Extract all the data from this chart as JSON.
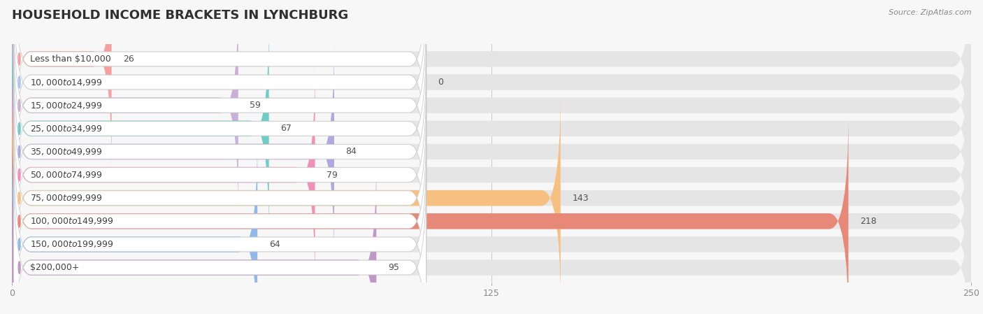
{
  "title": "HOUSEHOLD INCOME BRACKETS IN LYNCHBURG",
  "source": "Source: ZipAtlas.com",
  "categories": [
    "Less than $10,000",
    "$10,000 to $14,999",
    "$15,000 to $24,999",
    "$25,000 to $34,999",
    "$35,000 to $49,999",
    "$50,000 to $74,999",
    "$75,000 to $99,999",
    "$100,000 to $149,999",
    "$150,000 to $199,999",
    "$200,000+"
  ],
  "values": [
    26,
    0,
    59,
    67,
    84,
    79,
    143,
    218,
    64,
    95
  ],
  "bar_colors": [
    "#F4A0A0",
    "#A8C8F0",
    "#C8B0D8",
    "#6ECEC6",
    "#B0A8E0",
    "#F090B8",
    "#F8C080",
    "#E88878",
    "#90B8E8",
    "#C098C8"
  ],
  "xlim_max": 250,
  "xticks": [
    0,
    125,
    250
  ],
  "background_color": "#f7f7f7",
  "bar_bg_color": "#e5e5e5",
  "title_fontsize": 13,
  "label_fontsize": 9,
  "value_fontsize": 9
}
